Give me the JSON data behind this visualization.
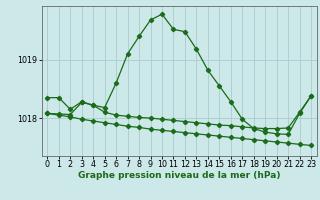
{
  "xlabel_label": "Graphe pression niveau de la mer (hPa)",
  "bg_color": "#cce8e8",
  "grid_color": "#aacccc",
  "line_color": "#1a6b1a",
  "hours": [
    0,
    1,
    2,
    3,
    4,
    5,
    6,
    7,
    8,
    9,
    10,
    11,
    12,
    13,
    14,
    15,
    16,
    17,
    18,
    19,
    20,
    21,
    22,
    23
  ],
  "series1": [
    1018.35,
    1018.35,
    1018.15,
    1018.28,
    1018.22,
    1018.18,
    1018.6,
    1019.1,
    1019.4,
    1019.68,
    1019.78,
    1019.52,
    1019.48,
    1019.18,
    1018.82,
    1018.55,
    1018.28,
    1017.98,
    1017.82,
    1017.76,
    1017.73,
    1017.72,
    1018.08,
    1018.38
  ],
  "series2": [
    1018.08,
    1018.07,
    1018.06,
    1018.27,
    1018.22,
    1018.1,
    1018.05,
    1018.03,
    1018.01,
    1018.0,
    1017.98,
    1017.96,
    1017.94,
    1017.92,
    1017.9,
    1017.88,
    1017.87,
    1017.85,
    1017.83,
    1017.82,
    1017.82,
    1017.83,
    1018.1,
    1018.38
  ],
  "series3": [
    1018.08,
    1018.05,
    1018.02,
    1017.98,
    1017.95,
    1017.92,
    1017.89,
    1017.86,
    1017.84,
    1017.81,
    1017.79,
    1017.77,
    1017.75,
    1017.73,
    1017.71,
    1017.69,
    1017.67,
    1017.65,
    1017.63,
    1017.61,
    1017.59,
    1017.57,
    1017.55,
    1017.53
  ],
  "ylim": [
    1017.35,
    1019.92
  ],
  "yticks": [
    1018,
    1019
  ],
  "xticks": [
    0,
    1,
    2,
    3,
    4,
    5,
    6,
    7,
    8,
    9,
    10,
    11,
    12,
    13,
    14,
    15,
    16,
    17,
    18,
    19,
    20,
    21,
    22,
    23
  ],
  "marker": "D",
  "markersize": 2.2,
  "linewidth": 0.9,
  "xlabel_fontsize": 6.5,
  "tick_fontsize": 5.8,
  "ylabel_fontsize": 6.0
}
